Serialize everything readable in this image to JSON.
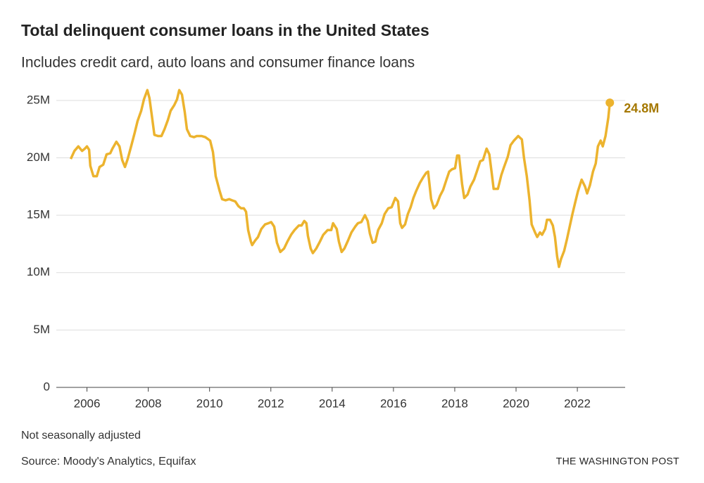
{
  "chart_data": {
    "type": "line",
    "title": "Total delinquent consumer loans in the United States",
    "subtitle": "Includes credit card, auto loans and consumer finance loans",
    "note": "Not seasonally adjusted",
    "source": "Source: Moody's Analytics, Equifax",
    "credit": "THE WASHINGTON POST",
    "xlim": [
      2005,
      2023.56
    ],
    "xticks": [
      2006,
      2008,
      2010,
      2012,
      2014,
      2016,
      2018,
      2020,
      2022
    ],
    "ylim": [
      0,
      26.4
    ],
    "yticks": [
      0,
      {
        "value": 5,
        "label": "5M"
      },
      {
        "value": 10,
        "label": "10M"
      },
      {
        "value": 15,
        "label": "15M"
      },
      {
        "value": 20,
        "label": "20M"
      },
      {
        "value": 25,
        "label": "25M"
      }
    ],
    "grid": true,
    "label_color": "#a57800",
    "x": [
      2005.47,
      2005.59,
      2005.72,
      2005.84,
      2005.93,
      2006.0,
      2006.07,
      2006.11,
      2006.21,
      2006.32,
      2006.41,
      2006.53,
      2006.64,
      2006.76,
      2006.83,
      2006.96,
      2007.06,
      2007.15,
      2007.24,
      2007.33,
      2007.45,
      2007.56,
      2007.65,
      2007.77,
      2007.86,
      2007.97,
      2008.04,
      2008.11,
      2008.2,
      2008.32,
      2008.43,
      2008.53,
      2008.64,
      2008.73,
      2008.85,
      2008.94,
      2009.01,
      2009.1,
      2009.19,
      2009.26,
      2009.37,
      2009.49,
      2009.58,
      2009.74,
      2009.86,
      2010.02,
      2010.11,
      2010.2,
      2010.32,
      2010.41,
      2010.52,
      2010.64,
      2010.73,
      2010.84,
      2010.94,
      2011.03,
      2011.12,
      2011.19,
      2011.26,
      2011.35,
      2011.39,
      2011.49,
      2011.58,
      2011.69,
      2011.81,
      2011.92,
      2012.01,
      2012.11,
      2012.2,
      2012.31,
      2012.43,
      2012.54,
      2012.66,
      2012.77,
      2012.91,
      2013.0,
      2013.09,
      2013.16,
      2013.21,
      2013.3,
      2013.37,
      2013.48,
      2013.6,
      2013.71,
      2013.85,
      2013.97,
      2014.03,
      2014.15,
      2014.22,
      2014.31,
      2014.4,
      2014.52,
      2014.63,
      2014.75,
      2014.84,
      2014.95,
      2015.07,
      2015.16,
      2015.23,
      2015.32,
      2015.41,
      2015.5,
      2015.62,
      2015.71,
      2015.83,
      2015.94,
      2016.06,
      2016.15,
      2016.22,
      2016.28,
      2016.38,
      2016.47,
      2016.56,
      2016.65,
      2016.74,
      2016.86,
      2016.97,
      2017.07,
      2017.13,
      2017.23,
      2017.32,
      2017.41,
      2017.52,
      2017.62,
      2017.73,
      2017.82,
      2017.91,
      2018.01,
      2018.08,
      2018.14,
      2018.24,
      2018.31,
      2018.42,
      2018.51,
      2018.63,
      2018.72,
      2018.83,
      2018.92,
      2019.04,
      2019.13,
      2019.2,
      2019.27,
      2019.41,
      2019.52,
      2019.61,
      2019.73,
      2019.82,
      2019.93,
      2020.07,
      2020.19,
      2020.26,
      2020.35,
      2020.44,
      2020.51,
      2020.62,
      2020.69,
      2020.78,
      2020.85,
      2020.95,
      2021.01,
      2021.11,
      2021.2,
      2021.27,
      2021.34,
      2021.4,
      2021.47,
      2021.57,
      2021.66,
      2021.75,
      2021.84,
      2021.93,
      2022.02,
      2022.14,
      2022.25,
      2022.32,
      2022.41,
      2022.51,
      2022.6,
      2022.67,
      2022.76,
      2022.83,
      2022.92,
      2023.01,
      2023.06
    ],
    "series": [
      {
        "color": "#ecb32e",
        "values": [
          19.9,
          20.6,
          21.0,
          20.6,
          20.8,
          21.0,
          20.7,
          19.3,
          18.4,
          18.4,
          19.2,
          19.4,
          20.3,
          20.4,
          20.8,
          21.4,
          21.0,
          19.8,
          19.2,
          19.9,
          21.1,
          22.2,
          23.2,
          24.1,
          25.1,
          25.9,
          25.2,
          23.8,
          22.0,
          21.9,
          21.9,
          22.5,
          23.3,
          24.1,
          24.6,
          25.1,
          25.9,
          25.5,
          24.0,
          22.5,
          21.9,
          21.8,
          21.9,
          21.9,
          21.8,
          21.5,
          20.5,
          18.4,
          17.2,
          16.4,
          16.3,
          16.4,
          16.3,
          16.2,
          15.8,
          15.6,
          15.6,
          15.3,
          13.7,
          12.7,
          12.4,
          12.8,
          13.1,
          13.8,
          14.2,
          14.3,
          14.4,
          14.0,
          12.6,
          11.8,
          12.1,
          12.7,
          13.3,
          13.7,
          14.1,
          14.1,
          14.5,
          14.3,
          13.2,
          12.1,
          11.7,
          12.1,
          12.7,
          13.3,
          13.7,
          13.7,
          14.3,
          13.8,
          12.7,
          11.8,
          12.1,
          12.8,
          13.5,
          14.0,
          14.3,
          14.4,
          15.0,
          14.5,
          13.4,
          12.6,
          12.7,
          13.7,
          14.3,
          15.1,
          15.6,
          15.7,
          16.5,
          16.2,
          14.3,
          13.9,
          14.2,
          15.1,
          15.7,
          16.5,
          17.1,
          17.8,
          18.3,
          18.7,
          18.8,
          16.4,
          15.6,
          15.9,
          16.7,
          17.2,
          18.1,
          18.8,
          19.0,
          19.1,
          20.2,
          20.2,
          17.7,
          16.5,
          16.8,
          17.5,
          18.1,
          18.8,
          19.7,
          19.8,
          20.8,
          20.3,
          18.8,
          17.3,
          17.3,
          18.5,
          19.2,
          20.1,
          21.1,
          21.5,
          21.9,
          21.6,
          20.0,
          18.4,
          16.3,
          14.2,
          13.5,
          13.1,
          13.5,
          13.3,
          13.8,
          14.6,
          14.6,
          14.1,
          13.1,
          11.4,
          10.5,
          11.2,
          11.9,
          12.9,
          14.0,
          15.1,
          16.1,
          17.1,
          18.1,
          17.5,
          16.9,
          17.6,
          18.8,
          19.5,
          21.0,
          21.5,
          21.0,
          21.9,
          23.5,
          24.8
        ],
        "value_labels": [
          null,
          null,
          null,
          null,
          null,
          null,
          null,
          null,
          null,
          null,
          null,
          null,
          null,
          null,
          null,
          null,
          null,
          null,
          null,
          null,
          null,
          null,
          null,
          null,
          null,
          null,
          null,
          null,
          null,
          null,
          null,
          null,
          null,
          null,
          null,
          null,
          null,
          null,
          null,
          null,
          null,
          null,
          null,
          null,
          null,
          null,
          null,
          null,
          null,
          null,
          null,
          null,
          null,
          null,
          null,
          null,
          null,
          null,
          null,
          null,
          null,
          null,
          null,
          null,
          null,
          null,
          null,
          null,
          null,
          null,
          null,
          null,
          null,
          null,
          null,
          null,
          null,
          null,
          null,
          null,
          null,
          null,
          null,
          null,
          null,
          null,
          null,
          null,
          null,
          null,
          null,
          null,
          null,
          null,
          null,
          null,
          null,
          null,
          null,
          null,
          null,
          null,
          null,
          null,
          null,
          null,
          null,
          null,
          null,
          null,
          null,
          null,
          null,
          null,
          null,
          null,
          null,
          null,
          null,
          null,
          null,
          null,
          null,
          null,
          null,
          null,
          null,
          null,
          null,
          null,
          null,
          null,
          null,
          null,
          null,
          null,
          null,
          null,
          null,
          null,
          null,
          null,
          null,
          null,
          null,
          null,
          null,
          null,
          null,
          null,
          null,
          null,
          null,
          null,
          null,
          null,
          null,
          null,
          null,
          null,
          null,
          null,
          null,
          null,
          null,
          null,
          null,
          null,
          null,
          null,
          null,
          null,
          null,
          null,
          null,
          null,
          null,
          null,
          null,
          null,
          null,
          null,
          null,
          "24.8M"
        ]
      }
    ]
  }
}
